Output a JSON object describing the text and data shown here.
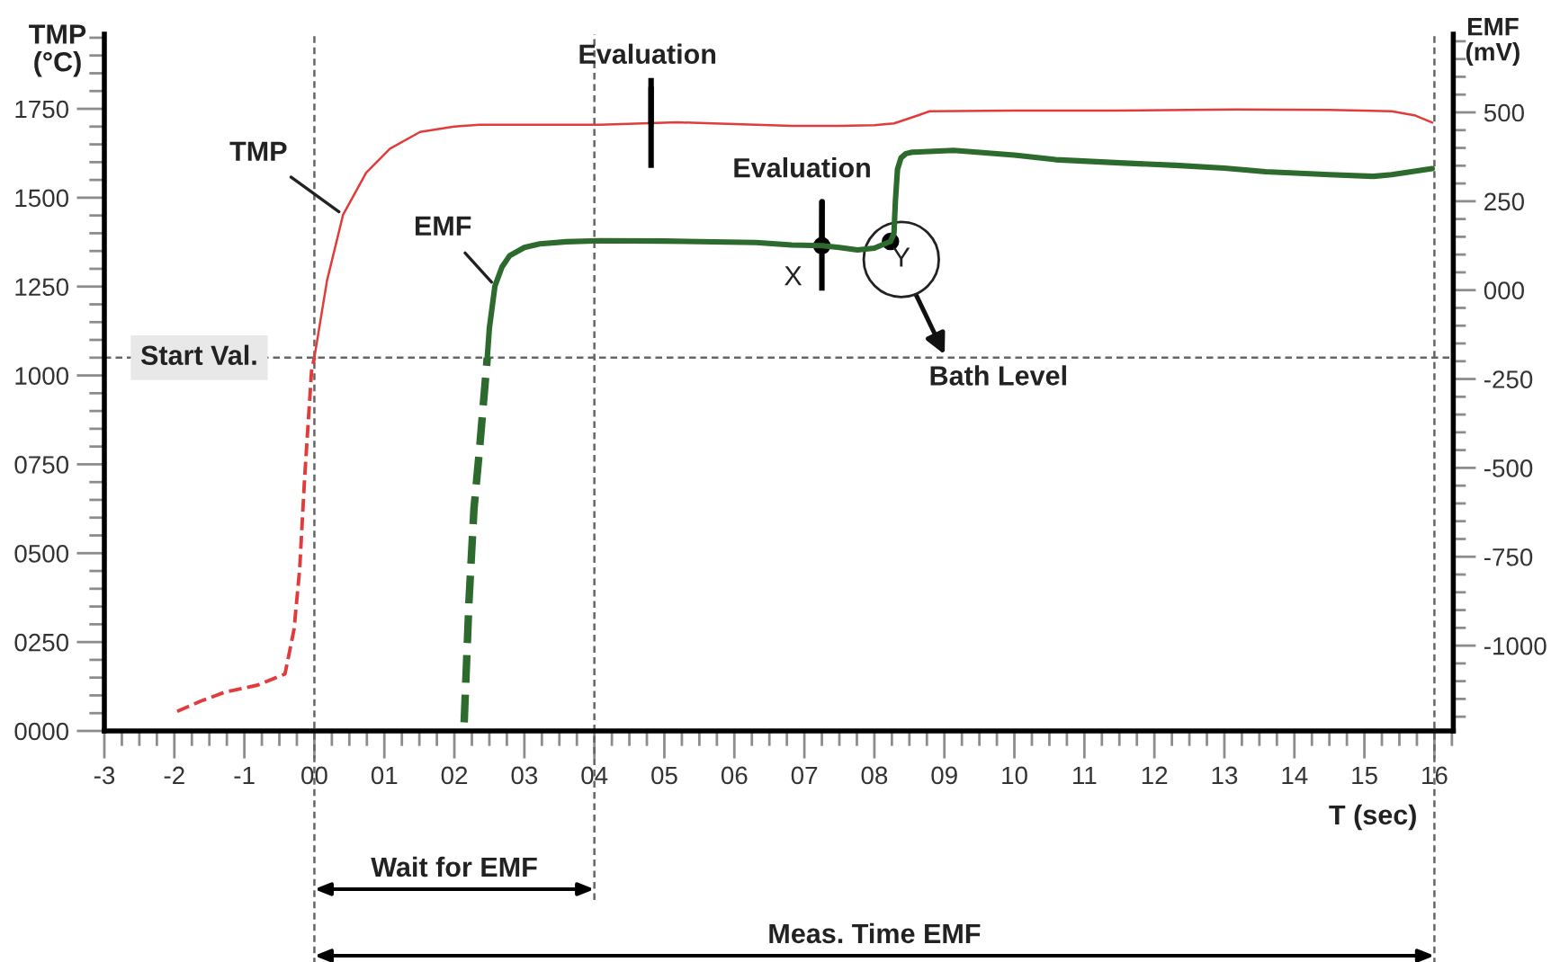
{
  "chart_data": {
    "type": "line",
    "xlabel": "T (sec)",
    "ylabel": "TMP\n(°C)",
    "y2label": "EMF\n(mV)",
    "xlim": [
      -3,
      16.27
    ],
    "xticks": [
      -3,
      -2,
      -1,
      {
        "value": 0,
        "label": "00"
      },
      {
        "value": 1,
        "label": "01"
      },
      {
        "value": 2,
        "label": "02"
      },
      {
        "value": 3,
        "label": "03"
      },
      {
        "value": 4,
        "label": "04"
      },
      {
        "value": 5,
        "label": "05"
      },
      {
        "value": 6,
        "label": "06"
      },
      {
        "value": 7,
        "label": "07"
      },
      {
        "value": 8,
        "label": "08"
      },
      {
        "value": 9,
        "label": "09"
      },
      10,
      11,
      12,
      13,
      14,
      15,
      16
    ],
    "ylim": [
      0,
      1960
    ],
    "yticks": [
      {
        "value": 0,
        "label": "0000"
      },
      {
        "value": 250,
        "label": "0250"
      },
      {
        "value": 500,
        "label": "0500"
      },
      {
        "value": 750,
        "label": "0750"
      },
      1000,
      1250,
      1500,
      1750
    ],
    "y2lim": [
      -1240,
      720
    ],
    "y2ticks": [
      -1000,
      -750,
      -500,
      -250,
      {
        "value": 0,
        "label": "000"
      },
      250,
      500
    ],
    "series": [
      {
        "color": "#e23b3b",
        "line_style": "dashed",
        "x": [
          -1.96,
          -1.62,
          -1.28,
          -0.81,
          -0.42,
          -0.29,
          -0.21,
          -0.14,
          -0.04,
          0
        ],
        "values": [
          55,
          84,
          109,
          129,
          160,
          286,
          455,
          709,
          1013,
          1050
        ]
      },
      {
        "name": "TMP",
        "color": "#e23b3b",
        "line_style": "solid",
        "x": [
          0,
          0.18,
          0.41,
          0.74,
          1.08,
          1.51,
          2.0,
          2.36,
          3.0,
          4.08,
          5.19,
          6.0,
          6.82,
          7.5,
          8.0,
          8.28,
          8.54,
          8.79,
          10.0,
          11.45,
          13.16,
          14.5,
          15.39,
          15.73,
          15.97
        ],
        "values": [
          1050,
          1266,
          1452,
          1570,
          1638,
          1685,
          1700,
          1705,
          1705,
          1705,
          1712,
          1707,
          1702,
          1702,
          1704,
          1709,
          1726,
          1743,
          1745,
          1745,
          1748,
          1747,
          1743,
          1731,
          1711
        ]
      },
      {
        "color": "#2d6a2d",
        "line_style": "dashed",
        "axis": "y2",
        "x": [
          2.14,
          2.21,
          2.28,
          2.36,
          2.47
        ],
        "values": [
          -1216,
          -870,
          -615,
          -446,
          -190
        ]
      },
      {
        "name": "EMF",
        "color": "#2d6a2d",
        "line_style": "solid",
        "axis": "y2",
        "x": [
          2.47,
          2.5,
          2.58,
          2.68,
          2.79,
          3.0,
          3.22,
          3.6,
          4.08,
          5.0,
          6.31,
          6.82,
          7.25,
          7.5,
          7.76,
          8.0,
          8.23,
          8.28,
          8.3,
          8.33,
          8.38,
          8.45,
          8.54,
          9.13,
          10.0,
          10.59,
          11.5,
          12.3,
          13.0,
          13.59,
          14.5,
          15.13,
          15.39,
          15.97
        ],
        "values": [
          -190,
          -107,
          12,
          65,
          97,
          120,
          130,
          136,
          139,
          138,
          134,
          127,
          125,
          120,
          113,
          118,
          137,
          160,
          250,
          340,
          372,
          384,
          388,
          393,
          380,
          367,
          358,
          351,
          343,
          333,
          325,
          320,
          325,
          342
        ]
      }
    ],
    "ref_lines": [
      {
        "axis": "x",
        "value": 0,
        "line_style": "dashed",
        "color": "#666666"
      },
      {
        "axis": "x",
        "value": 4,
        "line_style": "dashed",
        "color": "#666666"
      },
      {
        "axis": "x",
        "value": 16,
        "line_style": "dashed",
        "color": "#666666"
      },
      {
        "axis": "y",
        "value": 1050,
        "label": "Start Val.",
        "line_style": "dashed",
        "color": "#666666"
      }
    ],
    "annotations": [
      {
        "text": "Evaluation",
        "x": 4.81,
        "y": 1710
      },
      {
        "text": "Evaluation",
        "x": 7.25,
        "y": 1365
      },
      {
        "text": "X",
        "x": 7.25,
        "y": 1365
      },
      {
        "text": "Y",
        "x": 8.23,
        "y": 1377
      },
      "Bath Level",
      "Wait for EMF",
      "Meas. Time EMF"
    ]
  }
}
